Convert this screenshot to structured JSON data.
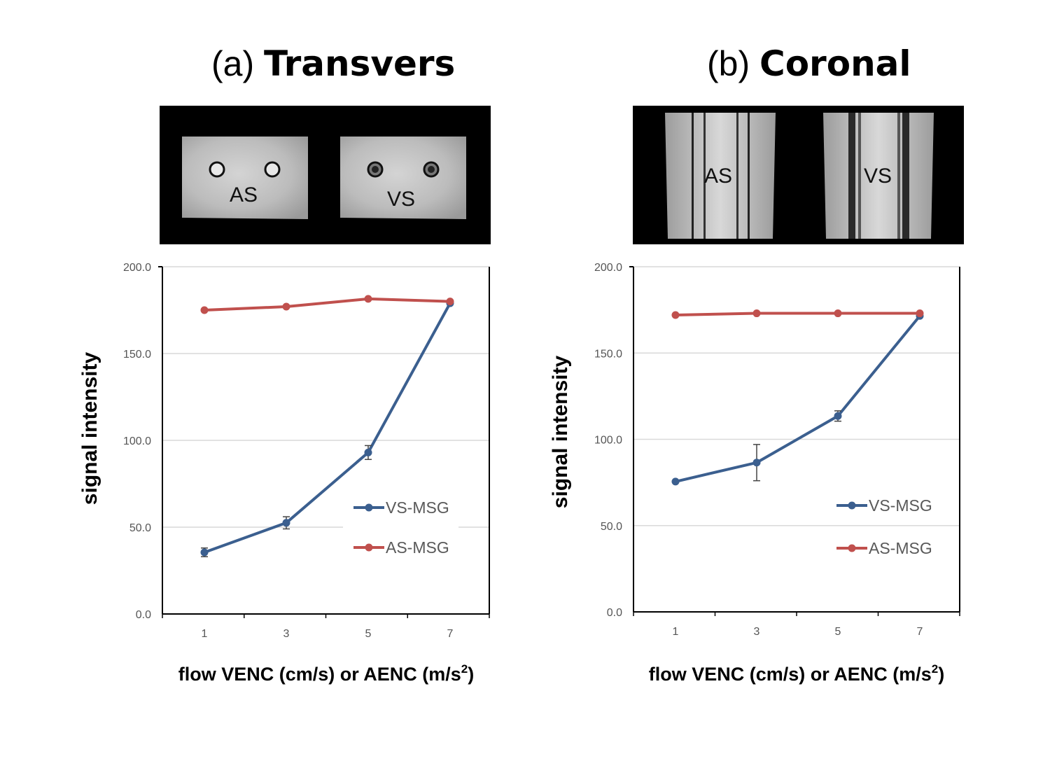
{
  "panels": [
    {
      "id": "a",
      "title_prefix": "(a)",
      "title_main": "Transvers",
      "image_labels": [
        "AS",
        "VS"
      ]
    },
    {
      "id": "b",
      "title_prefix": "(b)",
      "title_main": "Coronal",
      "image_labels": [
        "AS",
        "VS"
      ]
    }
  ],
  "chart_data": [
    {
      "type": "line",
      "panel": "(a) Transvers",
      "categories": [
        "1",
        "3",
        "5",
        "7"
      ],
      "ylabel": "signal intensity",
      "xlabel_main": "flow VENC (cm/s) or AENC (m/s",
      "xlabel_sup": "2",
      "xlabel_end": ")",
      "ylim": [
        0,
        200
      ],
      "yticks": [
        "0.0",
        "50.0",
        "100.0",
        "150.0",
        "200.0"
      ],
      "grid": true,
      "legend": "lower-right",
      "series": [
        {
          "name": "VS-MSG",
          "color": "#3b5f8f",
          "values": [
            35.5,
            52.5,
            93.0,
            179.0
          ],
          "errors": [
            2.5,
            3.5,
            4.0,
            1.0
          ]
        },
        {
          "name": "AS-MSG",
          "color": "#c0504d",
          "values": [
            175.0,
            177.0,
            181.5,
            180.0
          ],
          "errors": [
            1.0,
            0.8,
            0.8,
            0.8
          ]
        }
      ]
    },
    {
      "type": "line",
      "panel": "(b) Coronal",
      "categories": [
        "1",
        "3",
        "5",
        "7"
      ],
      "ylabel": "signal intensity",
      "xlabel_main": "flow VENC (cm/s) or AENC (m/s",
      "xlabel_sup": "2",
      "xlabel_end": ")",
      "ylim": [
        0,
        200
      ],
      "yticks": [
        "0.0",
        "50.0",
        "100.0",
        "150.0",
        "200.0"
      ],
      "grid": true,
      "legend": "lower-right",
      "series": [
        {
          "name": "VS-MSG",
          "color": "#3b5f8f",
          "values": [
            75.5,
            86.5,
            113.5,
            171.5
          ],
          "errors": [
            1.0,
            10.5,
            3.0,
            1.0
          ]
        },
        {
          "name": "AS-MSG",
          "color": "#c0504d",
          "values": [
            172.0,
            173.0,
            173.0,
            173.0
          ],
          "errors": [
            0.8,
            1.0,
            0.8,
            0.8
          ]
        }
      ]
    }
  ]
}
